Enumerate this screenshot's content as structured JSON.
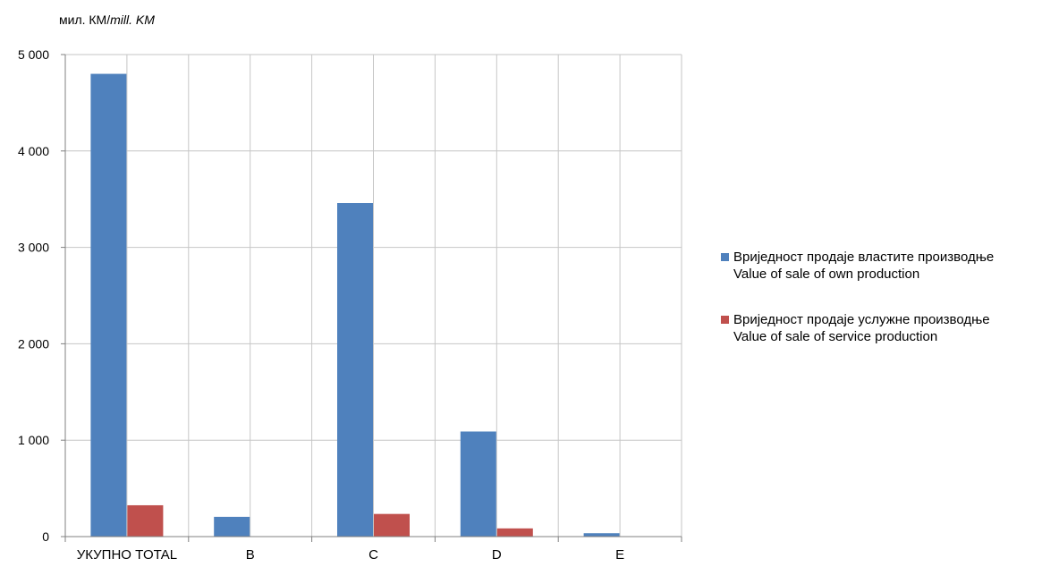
{
  "chart_data": {
    "type": "bar",
    "unit_label_main": "мил. КМ/",
    "unit_label_italic": "mill. KM",
    "categories": [
      "УКУПНО TOTAL",
      "B",
      "C",
      "D",
      "E"
    ],
    "y_ticks": [
      "0",
      "1 000",
      "2 000",
      "3 000",
      "4 000",
      "5 000"
    ],
    "ylim": [
      0,
      5000
    ],
    "series": [
      {
        "label_line1": "Вриједност продаје властите производње",
        "label_line2": "Value of sale of own production",
        "color": "#4f81bd",
        "values": [
          4800,
          205,
          3460,
          1090,
          35
        ]
      },
      {
        "label_line1": "Вриједност продаје услужне производње",
        "label_line2": "Value of sale of service production",
        "color": "#c0504d",
        "values": [
          325,
          0,
          235,
          85,
          0
        ]
      }
    ],
    "grid": true,
    "legend_position": "right"
  }
}
